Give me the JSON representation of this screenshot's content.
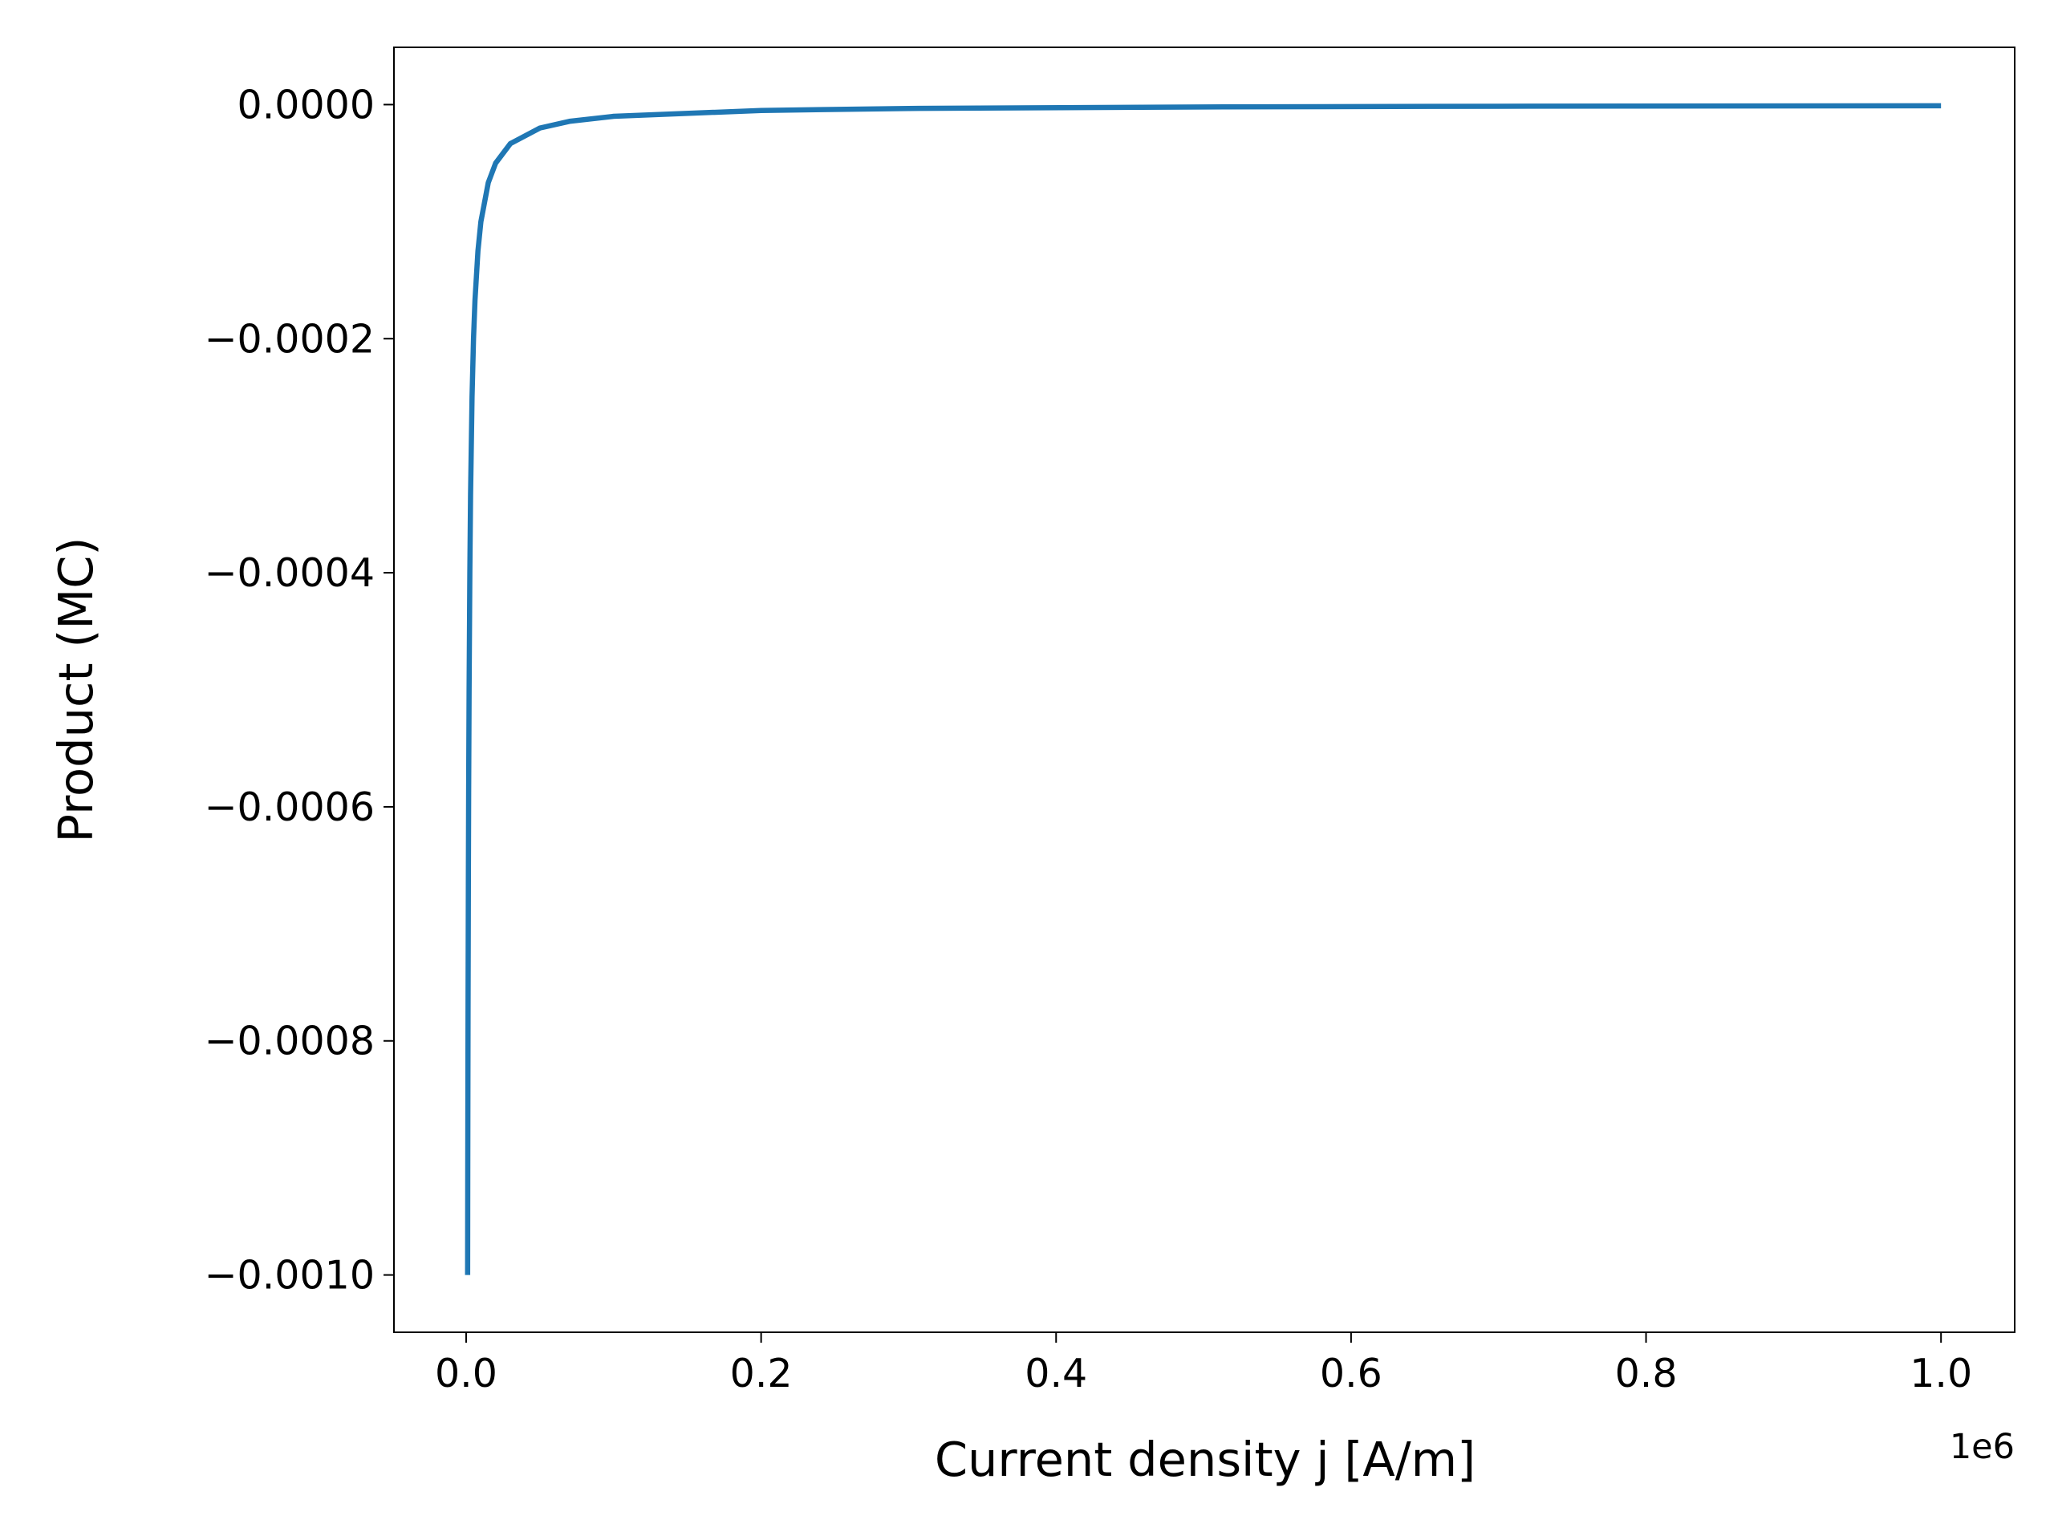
{
  "chart_data": {
    "type": "line",
    "xlabel": "Current density j [A/m]",
    "ylabel": "Product (MC)",
    "x_offset_label": "1e6",
    "x": [
      1000,
      1100,
      1200,
      1300,
      1500,
      1700,
      2000,
      2500,
      3000,
      4000,
      5000,
      6000,
      8000,
      10000,
      15000,
      20000,
      30000,
      50000,
      70000,
      100000,
      200000,
      300000,
      500000,
      700000,
      1000000
    ],
    "values": [
      -0.001,
      -0.000909,
      -0.000833,
      -0.000769,
      -0.000667,
      -0.000588,
      -0.0005,
      -0.0004,
      -0.000333,
      -0.00025,
      -0.0002,
      -0.000167,
      -0.000125,
      -0.0001,
      -6.67e-05,
      -5e-05,
      -3.33e-05,
      -2e-05,
      -1.43e-05,
      -1e-05,
      -5e-06,
      -3.3e-06,
      -2e-06,
      -1.4e-06,
      -1e-06
    ],
    "color": "#1f77b4",
    "xlim": [
      -48950,
      1049950
    ],
    "ylim": [
      -0.00104895,
      4.895e-05
    ],
    "xticks": [
      {
        "value": 0,
        "label": "0.0"
      },
      {
        "value": 200000,
        "label": "0.2"
      },
      {
        "value": 400000,
        "label": "0.4"
      },
      {
        "value": 600000,
        "label": "0.6"
      },
      {
        "value": 800000,
        "label": "0.8"
      },
      {
        "value": 1000000,
        "label": "1.0"
      }
    ],
    "yticks": [
      {
        "value": 0,
        "label": "0.0000"
      },
      {
        "value": -0.0002,
        "label": "−0.0002"
      },
      {
        "value": -0.0004,
        "label": "−0.0004"
      },
      {
        "value": -0.0006,
        "label": "−0.0006"
      },
      {
        "value": -0.0008,
        "label": "−0.0008"
      },
      {
        "value": -0.001,
        "label": "−0.0010"
      }
    ],
    "grid": false
  }
}
